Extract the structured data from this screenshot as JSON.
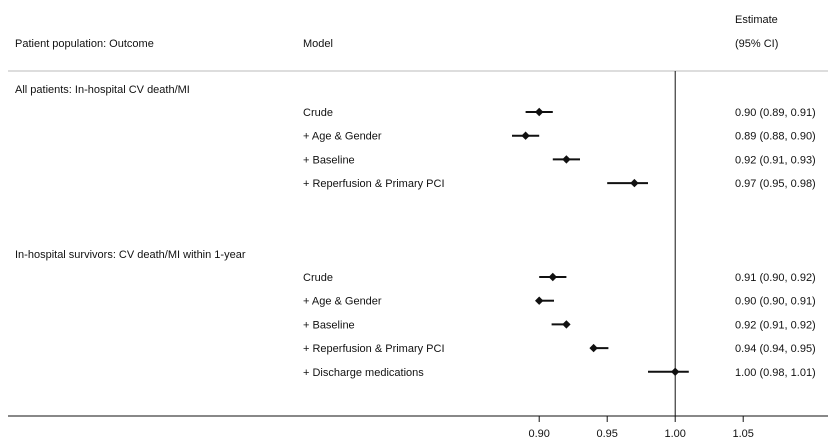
{
  "header": {
    "population_col": "Patient population: Outcome",
    "model_col": "Model",
    "estimate_line1": "Estimate",
    "estimate_line2": "(95% CI)"
  },
  "chart_data": {
    "type": "forest",
    "reference_value": 1.0,
    "xlim": [
      0.855,
      1.08
    ],
    "xticks": [
      0.9,
      0.95,
      1.0,
      1.05
    ],
    "xtick_labels": [
      "0.90",
      "0.95",
      "1.00",
      "1.05"
    ],
    "groups": [
      {
        "label": "All patients: In-hospital CV death/MI",
        "rows": [
          {
            "model": "Crude",
            "estimate": 0.9,
            "lower": 0.89,
            "upper": 0.91,
            "text": "0.90 (0.89, 0.91)"
          },
          {
            "model": "+ Age & Gender",
            "estimate": 0.89,
            "lower": 0.88,
            "upper": 0.9,
            "text": "0.89 (0.88, 0.90)"
          },
          {
            "model": "+ Baseline",
            "estimate": 0.92,
            "lower": 0.91,
            "upper": 0.93,
            "text": "0.92 (0.91, 0.93)"
          },
          {
            "model": "+ Reperfusion & Primary PCI",
            "estimate": 0.97,
            "lower": 0.95,
            "upper": 0.98,
            "text": "0.97 (0.95, 0.98)"
          }
        ]
      },
      {
        "label": "In-hospital survivors: CV death/MI within 1-year",
        "rows": [
          {
            "model": "Crude",
            "estimate": 0.91,
            "lower": 0.9,
            "upper": 0.92,
            "text": "0.91 (0.90, 0.92)"
          },
          {
            "model": "+ Age & Gender",
            "estimate": 0.9,
            "lower": 0.9,
            "upper": 0.91,
            "text": "0.90 (0.90, 0.91)"
          },
          {
            "model": "+ Baseline",
            "estimate": 0.92,
            "lower": 0.91,
            "upper": 0.92,
            "text": "0.92 (0.91, 0.92)"
          },
          {
            "model": "+ Reperfusion & Primary PCI",
            "estimate": 0.94,
            "lower": 0.94,
            "upper": 0.95,
            "text": "0.94 (0.94, 0.95)"
          },
          {
            "model": "+ Discharge medications",
            "estimate": 1.0,
            "lower": 0.98,
            "upper": 1.01,
            "text": "1.00 (0.98, 1.01)"
          }
        ]
      }
    ]
  },
  "colors": {
    "marks": "#111111",
    "rule": "#bbbbbb"
  }
}
